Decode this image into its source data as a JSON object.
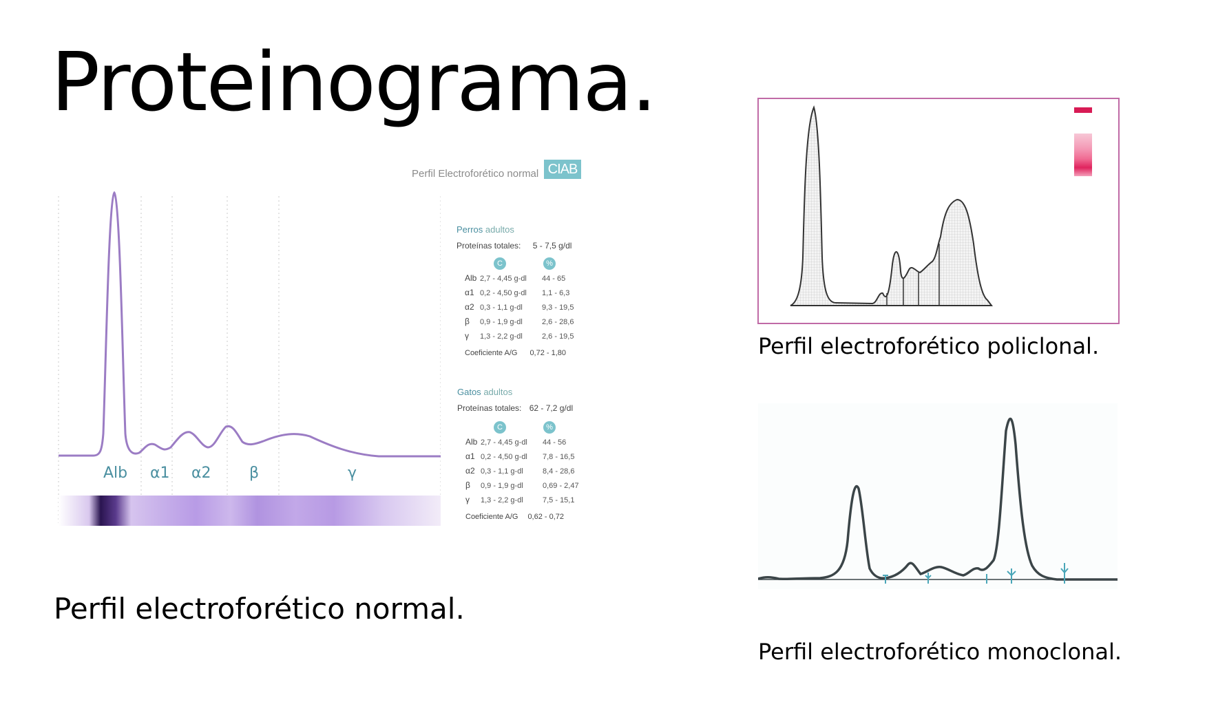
{
  "slide": {
    "title": "Proteinograma.",
    "caption_normal": "Perfil electroforético normal.",
    "caption_polyclonal": "Perfil electroforético policlonal.",
    "caption_monoclonal": "Perfil electroforético monoclonal."
  },
  "normal_figure": {
    "header_label": "Perfil Electroforético normal",
    "logo_text": "CIAB",
    "fraction_labels": [
      "Alb",
      "α1",
      "α2",
      "β",
      "γ"
    ],
    "dogs": {
      "title_bold": "Perros",
      "title_rest": "adultos",
      "total_label": "Proteínas totales:",
      "total_value": "5 - 7,5  g/dl",
      "col_c": "C",
      "col_pct": "%",
      "rows": [
        {
          "name": "Alb",
          "c": "2,7 - 4,45  g-dl",
          "pct": "44 - 65"
        },
        {
          "name": "α1",
          "c": "0,2 - 4,50  g-dl",
          "pct": "1,1 -  6,3"
        },
        {
          "name": "α2",
          "c": "0,3 - 1,1    g-dl",
          "pct": "9,3 - 19,5"
        },
        {
          "name": "β",
          "c": "0,9 - 1,9    g-dl",
          "pct": "2,6 - 28,6"
        },
        {
          "name": "γ",
          "c": "1,3 - 2,2    g-dl",
          "pct": "2,6 - 19,5"
        }
      ],
      "coef_label": "Coeficiente A/G",
      "coef_value": "0,72 - 1,80"
    },
    "cats": {
      "title_bold": "Gatos",
      "title_rest": "adultos",
      "total_label": "Proteínas totales:",
      "total_value": "62 - 7,2  g/dl",
      "col_c": "C",
      "col_pct": "%",
      "rows": [
        {
          "name": "Alb",
          "c": "2,7 - 4,45  g-dl",
          "pct": "44 - 56"
        },
        {
          "name": "α1",
          "c": "0,2 - 4,50  g-dl",
          "pct": "7,8 - 16,5"
        },
        {
          "name": "α2",
          "c": "0,3 - 1,1    g-dl",
          "pct": "8,4 - 28,6"
        },
        {
          "name": "β",
          "c": "0,9 - 1,9    g-dl",
          "pct": "0,69 -  2,47"
        },
        {
          "name": "γ",
          "c": "1,3 - 2,2    g-dl",
          "pct": "7,5 - 15,1"
        }
      ],
      "coef_label": "Coeficiente A/G",
      "coef_value": "0,62 - 0,72"
    },
    "colors": {
      "curve": "#9b7cc4",
      "band": "#8a5cc0",
      "accent": "#7cc3cc"
    }
  },
  "polyclonal_figure": {
    "colors": {
      "border": "#c06aa6",
      "curve": "#333333",
      "band": "#e0245e"
    }
  },
  "monoclonal_figure": {
    "colors": {
      "curve": "#3b4548",
      "marker": "#4aa6b8"
    }
  }
}
